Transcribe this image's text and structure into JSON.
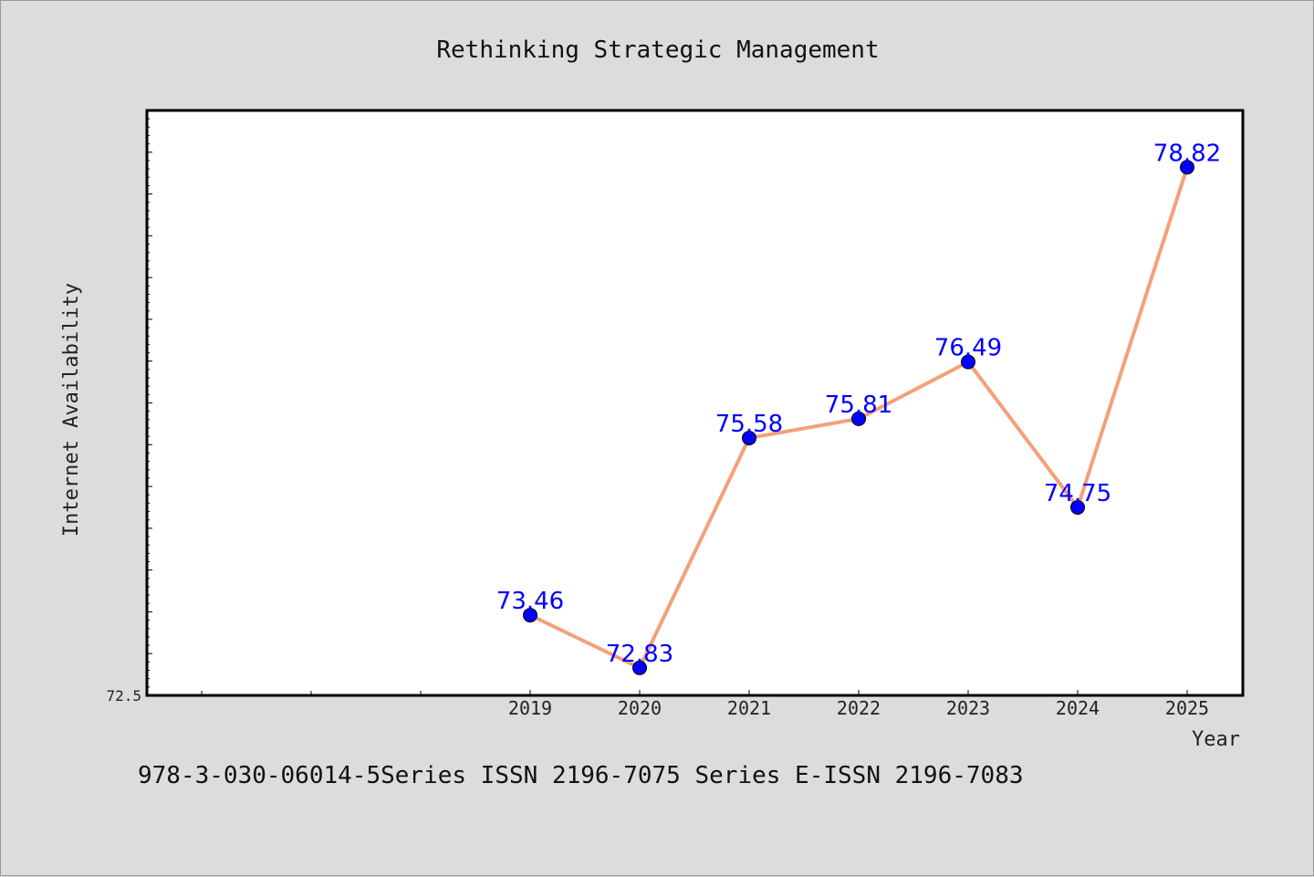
{
  "chart_data": {
    "type": "line",
    "title": "Rethinking Strategic Management",
    "xlabel": "Year",
    "ylabel": "Internet Availability",
    "x": [
      "2019",
      "2020",
      "2021",
      "2022",
      "2023",
      "2024",
      "2025"
    ],
    "series": [
      {
        "values": [
          73.46,
          72.83,
          75.58,
          75.81,
          76.49,
          74.75,
          78.82
        ]
      }
    ],
    "ylim": [
      72.5,
      79.5
    ],
    "y_tick_labels": [
      "72.5"
    ],
    "grid": false,
    "line_color": "#f4a07a",
    "marker_color": "#0000ff",
    "label_color": "#0000ff"
  },
  "footer": "978-3-030-06014-5Series ISSN 2196-7075 Series E-ISSN 2196-7083"
}
